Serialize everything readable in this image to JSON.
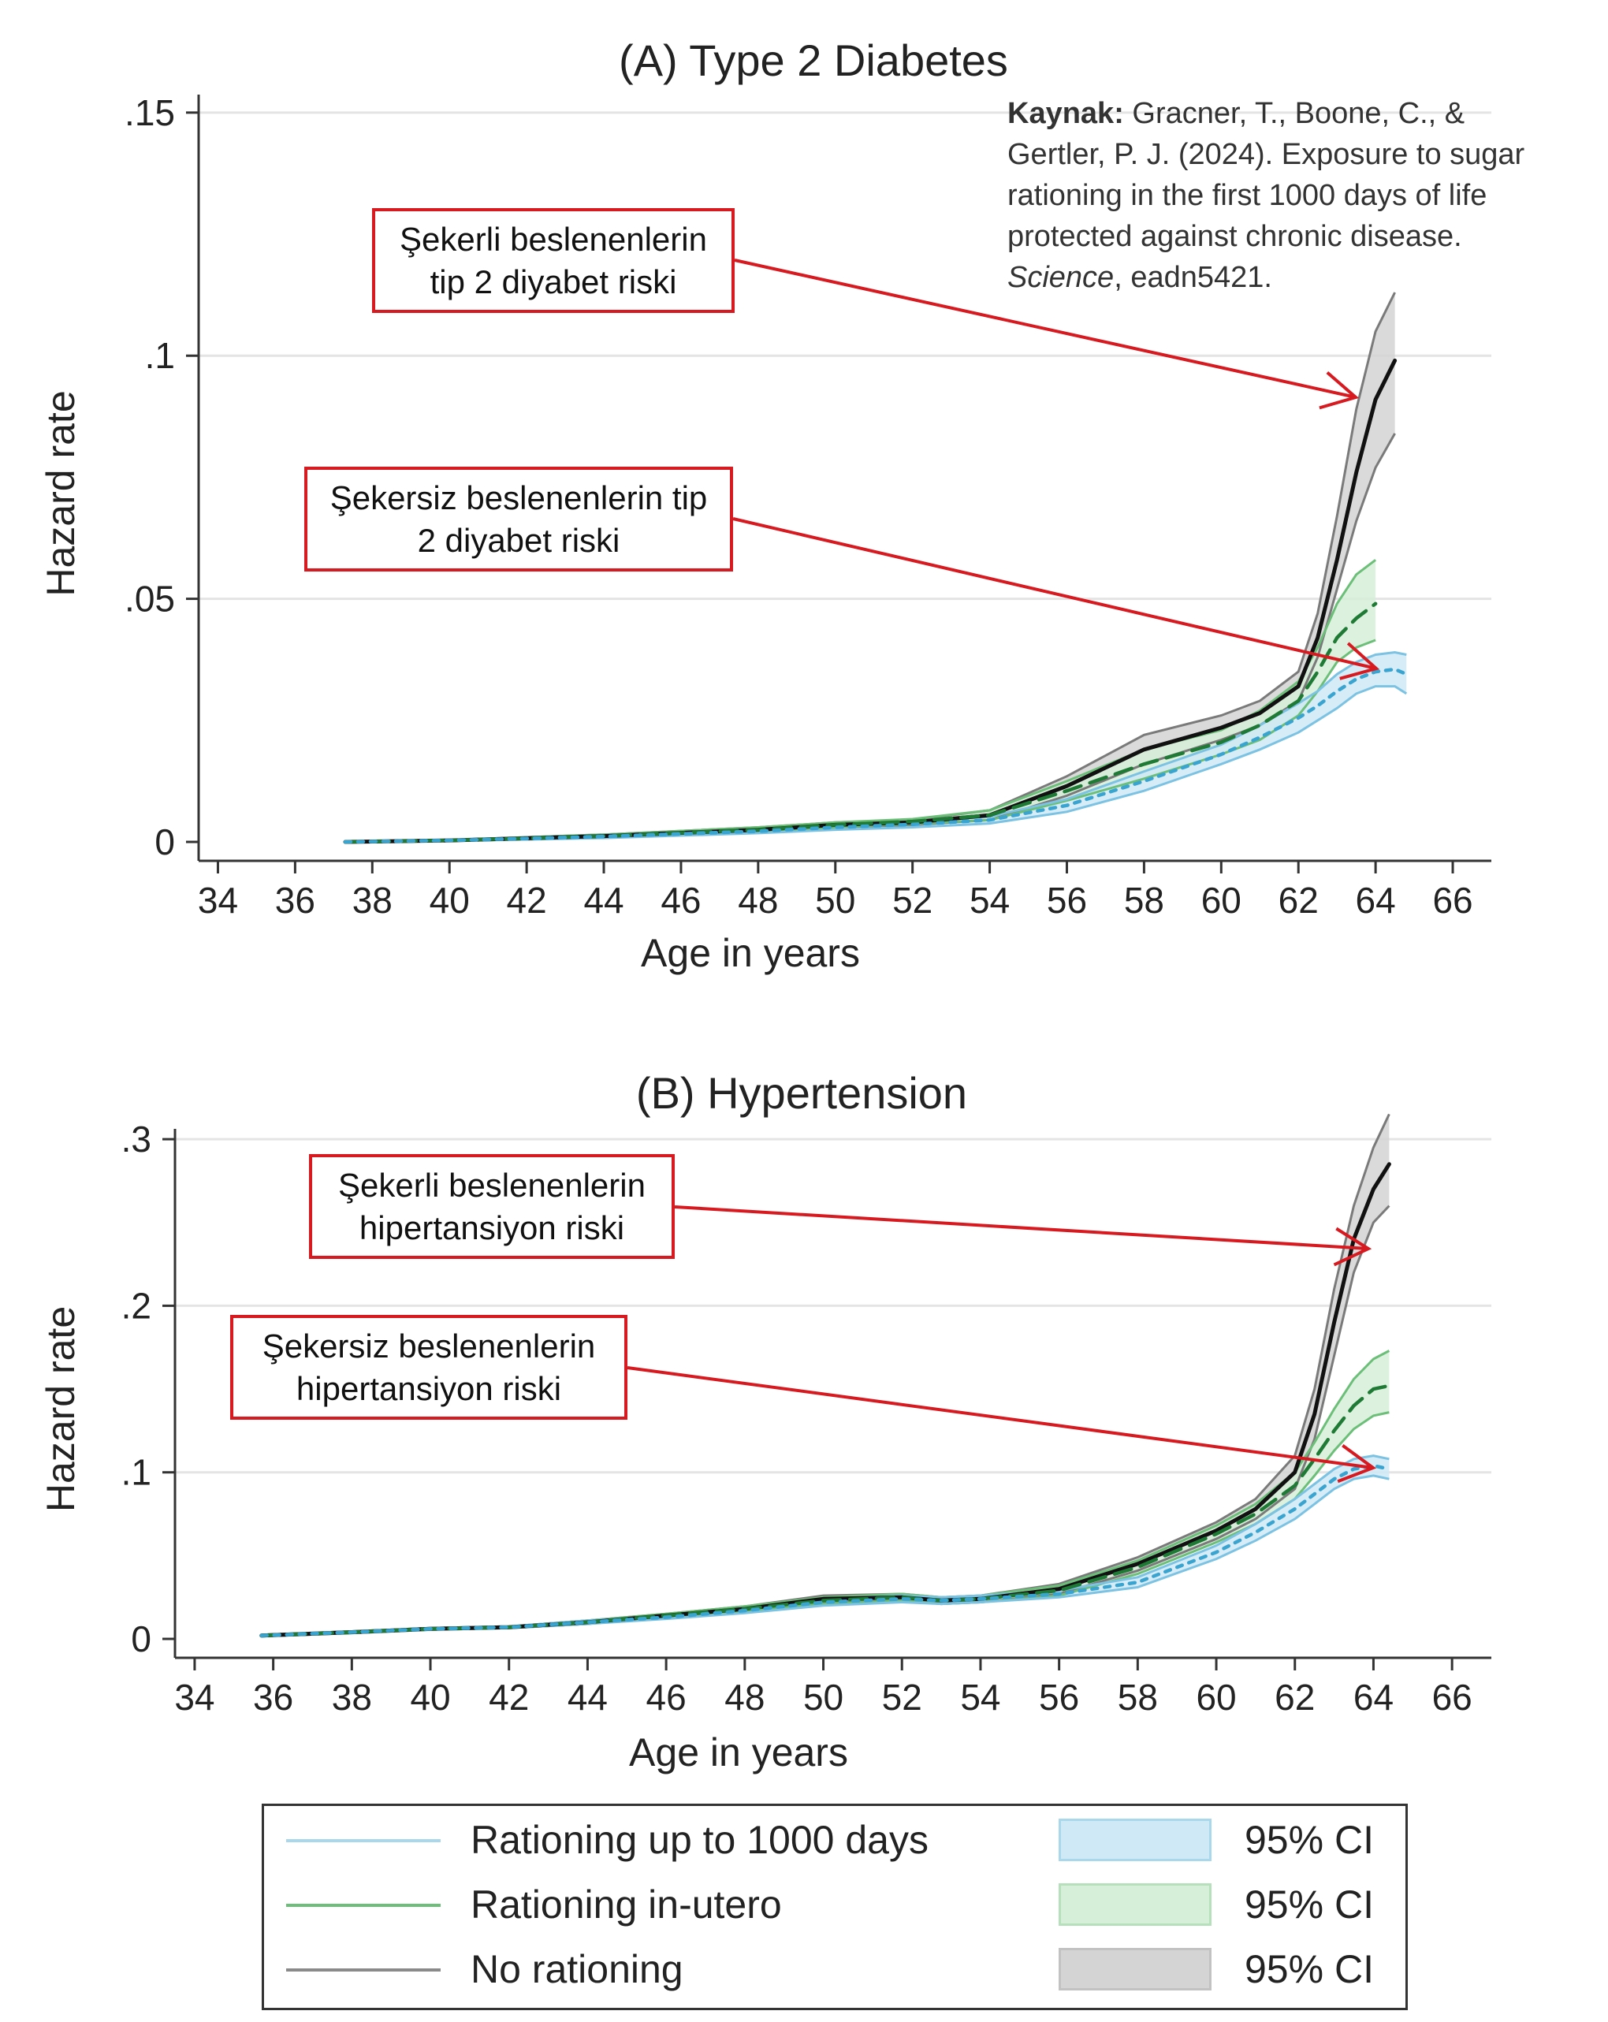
{
  "source_note": {
    "bold": "Kaynak:",
    "text1": " Gracner, T., Boone, C., & Gertler, P. J. (2024). Exposure to sugar rationing in the first 1000 days of life protected against chronic disease. ",
    "italic": "Science",
    "text2": ", eadn5421."
  },
  "colors": {
    "blue": "#3aa4d0",
    "blue_fill": "#cfe9f6",
    "green": "#3c9a4a",
    "green_dark": "#1e7a34",
    "green_fill": "#d6efd8",
    "black": "#111111",
    "gray": "#7a7a7a",
    "gray_fill": "#d4d4d4",
    "callout_border": "#d71920",
    "grid": "#e4e4e4"
  },
  "callouts": {
    "a_sugar": "Şekerli beslenenlerin tip 2 diyabet riski",
    "a_nosugar": "Şekersiz beslenenlerin tip 2 diyabet riski",
    "b_sugar": "Şekerli beslenenlerin hipertansiyon riski",
    "b_nosugar": "Şekersiz beslenenlerin hipertansiyon riski"
  },
  "legend": {
    "items": [
      {
        "label": "Rationing up to 1000 days",
        "ci": "95% CI"
      },
      {
        "label": "Rationing in-utero",
        "ci": "95% CI"
      },
      {
        "label": "No rationing",
        "ci": "95% CI"
      }
    ]
  },
  "chart_data": [
    {
      "type": "line",
      "title": "(A) Type 2 Diabetes",
      "xlabel": "Age in years",
      "ylabel": "Hazard rate",
      "xlim": [
        33.5,
        67
      ],
      "ylim": [
        0,
        0.155
      ],
      "xticks": [
        34,
        36,
        38,
        40,
        42,
        44,
        46,
        48,
        50,
        52,
        54,
        56,
        58,
        60,
        62,
        64,
        66
      ],
      "yticks": [
        0,
        0.05,
        0.1,
        0.15
      ],
      "ytick_labels": [
        "0",
        ".05",
        ".1",
        ".15"
      ],
      "grid": true,
      "series": [
        {
          "name": "No rationing",
          "style": "solid",
          "color_key": "black",
          "fill_key": "gray_fill",
          "x": [
            37.3,
            40,
            44,
            48,
            50,
            52,
            54,
            56,
            58,
            60,
            61,
            62,
            62.5,
            63,
            63.5,
            64,
            64.5
          ],
          "y": [
            0,
            0.0003,
            0.0012,
            0.0025,
            0.0035,
            0.004,
            0.0055,
            0.0115,
            0.019,
            0.0235,
            0.0265,
            0.032,
            0.042,
            0.058,
            0.076,
            0.091,
            0.099
          ],
          "lower": [
            0,
            0.0002,
            0.0009,
            0.002,
            0.003,
            0.0035,
            0.0045,
            0.0095,
            0.016,
            0.021,
            0.024,
            0.029,
            0.038,
            0.052,
            0.066,
            0.077,
            0.084
          ],
          "upper": [
            0,
            0.0004,
            0.0015,
            0.003,
            0.004,
            0.0045,
            0.0065,
            0.0135,
            0.022,
            0.026,
            0.029,
            0.035,
            0.047,
            0.067,
            0.089,
            0.105,
            0.113
          ]
        },
        {
          "name": "Rationing in-utero",
          "style": "dashed",
          "color_key": "green_dark",
          "fill_key": "green_fill",
          "x": [
            37.3,
            40,
            44,
            48,
            50,
            52,
            54,
            56,
            58,
            60,
            61,
            62,
            62.5,
            63,
            63.5,
            64
          ],
          "y": [
            0,
            0.0003,
            0.0012,
            0.0025,
            0.0035,
            0.0042,
            0.0055,
            0.0105,
            0.016,
            0.0205,
            0.024,
            0.029,
            0.035,
            0.042,
            0.046,
            0.049
          ],
          "lower": [
            0,
            0.0002,
            0.0009,
            0.002,
            0.003,
            0.0037,
            0.0045,
            0.0085,
            0.013,
            0.018,
            0.021,
            0.026,
            0.031,
            0.037,
            0.04,
            0.0415
          ],
          "upper": [
            0,
            0.0004,
            0.0015,
            0.003,
            0.004,
            0.0047,
            0.0065,
            0.0125,
            0.019,
            0.023,
            0.027,
            0.033,
            0.04,
            0.049,
            0.055,
            0.058
          ]
        },
        {
          "name": "Rationing up to 1000 days",
          "style": "dotted",
          "color_key": "blue",
          "fill_key": "blue_fill",
          "x": [
            37.3,
            40,
            44,
            48,
            50,
            52,
            54,
            56,
            58,
            60,
            61,
            62,
            62.5,
            63,
            63.5,
            64,
            64.5,
            64.8
          ],
          "y": [
            0,
            0.0003,
            0.0011,
            0.0022,
            0.003,
            0.0036,
            0.0045,
            0.0075,
            0.0125,
            0.018,
            0.0215,
            0.0255,
            0.028,
            0.031,
            0.0335,
            0.035,
            0.0355,
            0.0345
          ],
          "lower": [
            0,
            0.0002,
            0.0008,
            0.0018,
            0.0025,
            0.003,
            0.0038,
            0.0062,
            0.0105,
            0.016,
            0.019,
            0.0225,
            0.025,
            0.0275,
            0.0305,
            0.032,
            0.032,
            0.0305
          ],
          "upper": [
            0,
            0.0004,
            0.0014,
            0.0026,
            0.0035,
            0.0042,
            0.0052,
            0.0088,
            0.0145,
            0.02,
            0.024,
            0.0285,
            0.031,
            0.0345,
            0.037,
            0.0385,
            0.039,
            0.0385
          ]
        }
      ]
    },
    {
      "type": "line",
      "title": "(B) Hypertension",
      "xlabel": "Age in years",
      "ylabel": "Hazard rate",
      "xlim": [
        33.5,
        67
      ],
      "ylim": [
        0,
        0.31
      ],
      "xticks": [
        34,
        36,
        38,
        40,
        42,
        44,
        46,
        48,
        50,
        52,
        54,
        56,
        58,
        60,
        62,
        64,
        66
      ],
      "yticks": [
        0,
        0.1,
        0.2,
        0.3
      ],
      "ytick_labels": [
        "0",
        ".1",
        ".2",
        ".3"
      ],
      "grid": true,
      "series": [
        {
          "name": "No rationing",
          "style": "solid",
          "color_key": "black",
          "fill_key": "gray_fill",
          "x": [
            35.7,
            38,
            40,
            42,
            44,
            46,
            48,
            50,
            52,
            53,
            54,
            56,
            58,
            60,
            61,
            62,
            62.5,
            63,
            63.5,
            64,
            64.4
          ],
          "y": [
            0.002,
            0.004,
            0.006,
            0.007,
            0.01,
            0.014,
            0.018,
            0.024,
            0.025,
            0.023,
            0.024,
            0.03,
            0.045,
            0.065,
            0.078,
            0.1,
            0.135,
            0.19,
            0.24,
            0.27,
            0.285
          ],
          "lower": [
            0.0015,
            0.0035,
            0.0055,
            0.0065,
            0.009,
            0.013,
            0.0165,
            0.022,
            0.023,
            0.021,
            0.022,
            0.027,
            0.041,
            0.06,
            0.072,
            0.09,
            0.12,
            0.17,
            0.22,
            0.25,
            0.26
          ],
          "upper": [
            0.0025,
            0.0045,
            0.0065,
            0.0075,
            0.011,
            0.015,
            0.0195,
            0.026,
            0.027,
            0.025,
            0.026,
            0.033,
            0.049,
            0.07,
            0.084,
            0.11,
            0.15,
            0.21,
            0.26,
            0.295,
            0.315
          ]
        },
        {
          "name": "Rationing in-utero",
          "style": "dashed",
          "color_key": "green_dark",
          "fill_key": "green_fill",
          "x": [
            35.7,
            38,
            40,
            42,
            44,
            46,
            48,
            50,
            52,
            53,
            54,
            56,
            58,
            60,
            61,
            62,
            62.5,
            63,
            63.5,
            64,
            64.4
          ],
          "y": [
            0.002,
            0.004,
            0.006,
            0.007,
            0.01,
            0.014,
            0.018,
            0.023,
            0.025,
            0.023,
            0.024,
            0.029,
            0.043,
            0.063,
            0.075,
            0.092,
            0.108,
            0.125,
            0.14,
            0.15,
            0.152
          ],
          "lower": [
            0.0015,
            0.0035,
            0.0055,
            0.0065,
            0.009,
            0.013,
            0.0165,
            0.021,
            0.023,
            0.021,
            0.022,
            0.026,
            0.039,
            0.058,
            0.069,
            0.084,
            0.098,
            0.113,
            0.126,
            0.134,
            0.136
          ],
          "upper": [
            0.0025,
            0.0045,
            0.0065,
            0.0075,
            0.011,
            0.015,
            0.0195,
            0.025,
            0.027,
            0.025,
            0.026,
            0.032,
            0.047,
            0.068,
            0.081,
            0.1,
            0.118,
            0.138,
            0.156,
            0.168,
            0.173
          ]
        },
        {
          "name": "Rationing up to 1000 days",
          "style": "dotted",
          "color_key": "blue",
          "fill_key": "blue_fill",
          "x": [
            35.7,
            38,
            40,
            42,
            44,
            46,
            48,
            50,
            52,
            53,
            54,
            56,
            58,
            60,
            61,
            62,
            62.5,
            63,
            63.5,
            64,
            64.4
          ],
          "y": [
            0.002,
            0.004,
            0.006,
            0.007,
            0.01,
            0.013,
            0.017,
            0.022,
            0.024,
            0.023,
            0.024,
            0.027,
            0.034,
            0.052,
            0.064,
            0.078,
            0.087,
            0.096,
            0.102,
            0.104,
            0.102
          ],
          "lower": [
            0.0015,
            0.0035,
            0.0055,
            0.0065,
            0.009,
            0.012,
            0.0155,
            0.02,
            0.022,
            0.021,
            0.022,
            0.025,
            0.031,
            0.048,
            0.059,
            0.072,
            0.081,
            0.09,
            0.096,
            0.098,
            0.096
          ],
          "upper": [
            0.0025,
            0.0045,
            0.0065,
            0.0075,
            0.011,
            0.014,
            0.0185,
            0.024,
            0.026,
            0.025,
            0.026,
            0.029,
            0.037,
            0.056,
            0.069,
            0.084,
            0.093,
            0.102,
            0.108,
            0.11,
            0.108
          ]
        }
      ]
    }
  ]
}
